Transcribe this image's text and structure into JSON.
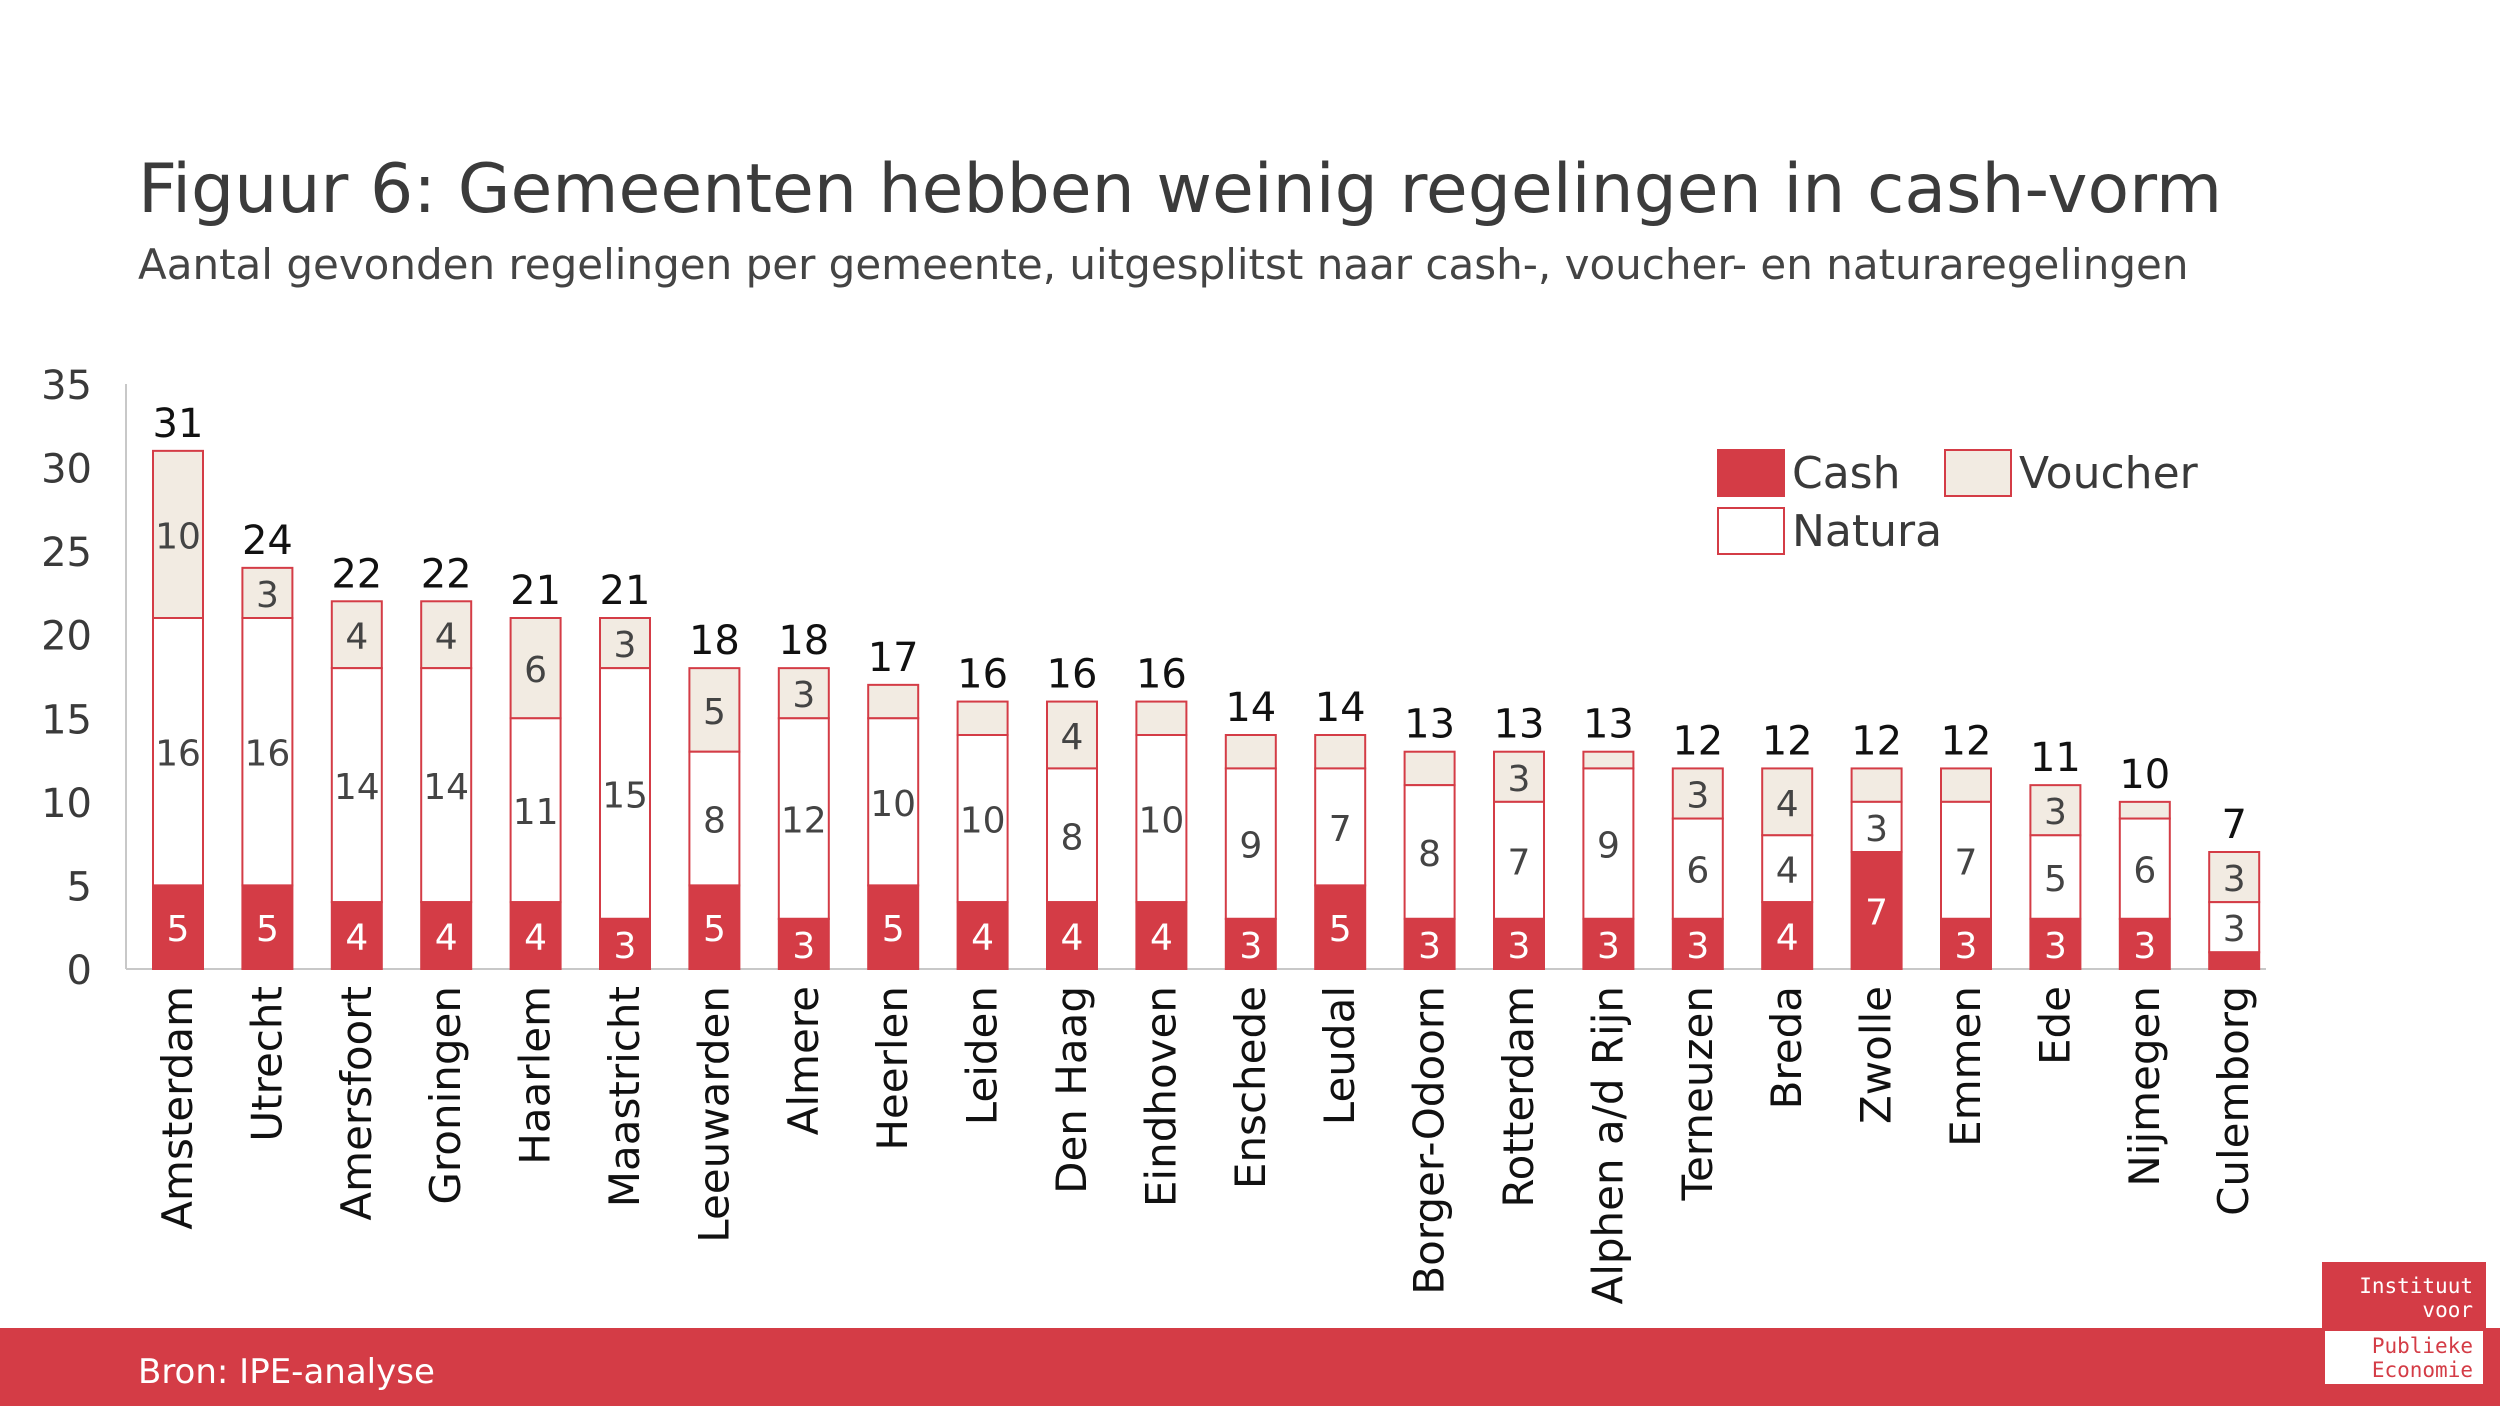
{
  "title": "Figuur 6: Gemeenten hebben weinig regelingen in cash-vorm",
  "subtitle": "Aantal gevonden regelingen per gemeente, uitgesplitst naar cash-, voucher- en naturaregelingen",
  "source": "Bron: IPE-analyse",
  "logo": {
    "line1": "Instituut",
    "line2": "voor",
    "line3": "Publieke",
    "line4": "Economie"
  },
  "colors": {
    "cash": "#d43c46",
    "voucher": "#f2ebe2",
    "natura": "#ffffff",
    "outline": "#d43c46",
    "footer": "#d43c46"
  },
  "chart_data": {
    "type": "bar",
    "stacked": true,
    "title": "Figuur 6: Gemeenten hebben weinig regelingen in cash-vorm",
    "subtitle": "Aantal gevonden regelingen per gemeente, uitgesplitst naar cash-, voucher- en naturaregelingen",
    "xlabel": "",
    "ylabel": "",
    "ylim": [
      0,
      35
    ],
    "yticks": [
      0,
      5,
      10,
      15,
      20,
      25,
      30,
      35
    ],
    "grid": false,
    "legend_position": "top-right",
    "categories": [
      "Amsterdam",
      "Utrecht",
      "Amersfoort",
      "Groningen",
      "Haarlem",
      "Maastricht",
      "Leeuwarden",
      "Almere",
      "Heerlen",
      "Leiden",
      "Den Haag",
      "Eindhoven",
      "Enschede",
      "Leudal",
      "Borger-Odoorn",
      "Rotterdam",
      "Alphen a/d Rijn",
      "Terneuzen",
      "Breda",
      "Zwolle",
      "Emmen",
      "Ede",
      "Nijmegen",
      "Culemborg"
    ],
    "series": [
      {
        "name": "Cash",
        "values": [
          5,
          5,
          4,
          4,
          4,
          3,
          5,
          3,
          5,
          4,
          4,
          4,
          3,
          5,
          3,
          3,
          3,
          3,
          4,
          7,
          3,
          3,
          3,
          1
        ],
        "labels": [
          "5",
          "5",
          "4",
          "4",
          "4",
          "3",
          "5",
          "3",
          "5",
          "4",
          "4",
          "4",
          "3",
          "5",
          "3",
          "3",
          "3",
          "3",
          "4",
          "7",
          "3",
          "3",
          "3",
          ""
        ]
      },
      {
        "name": "Natura",
        "values": [
          16,
          16,
          14,
          14,
          11,
          15,
          8,
          12,
          10,
          10,
          8,
          10,
          9,
          7,
          8,
          7,
          9,
          6,
          4,
          3,
          7,
          5,
          6,
          3
        ],
        "labels": [
          "16",
          "16",
          "14",
          "14",
          "11",
          "15",
          "8",
          "12",
          "10",
          "10",
          "8",
          "10",
          "9",
          "7",
          "8",
          "7",
          "9",
          "6",
          "4",
          "3",
          "7",
          "5",
          "6",
          "3"
        ]
      },
      {
        "name": "Voucher",
        "values": [
          10,
          3,
          4,
          4,
          6,
          3,
          5,
          3,
          2,
          2,
          4,
          2,
          2,
          2,
          2,
          3,
          1,
          3,
          4,
          2,
          2,
          3,
          1,
          3
        ],
        "labels": [
          "10",
          "3",
          "4",
          "4",
          "6",
          "3",
          "5",
          "3",
          "",
          "",
          "4",
          "",
          "",
          "",
          "",
          "3",
          "",
          "3",
          "4",
          "",
          "",
          "3",
          "",
          "3"
        ]
      }
    ],
    "totals": [
      31,
      24,
      22,
      22,
      21,
      21,
      18,
      18,
      17,
      16,
      16,
      16,
      14,
      14,
      13,
      13,
      13,
      12,
      12,
      12,
      12,
      11,
      10,
      7
    ],
    "legend": [
      "Cash",
      "Voucher",
      "Natura"
    ]
  }
}
